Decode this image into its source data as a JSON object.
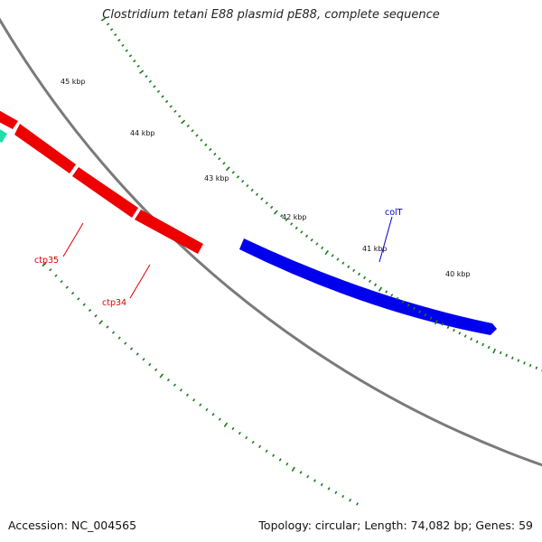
{
  "title": "Clostridium tetani E88 plasmid pE88, complete sequence",
  "footer": {
    "accession": "Accession: NC_004565",
    "summary": "Topology: circular; Length: 74,082 bp; Genes: 59"
  },
  "ticks": [
    {
      "label": "45 kbp"
    },
    {
      "label": "44 kbp"
    },
    {
      "label": "43 kbp"
    },
    {
      "label": "42 kbp"
    },
    {
      "label": "41 kbp"
    },
    {
      "label": "40 kbp"
    }
  ],
  "genes": [
    {
      "name": "ctp35",
      "color": "#dd0000"
    },
    {
      "name": "ctp34",
      "color": "#dd0000"
    },
    {
      "name": "colT",
      "color": "#0000cc"
    }
  ],
  "colors": {
    "backbone": "#7a7a7a",
    "tick": "#1a7a1a",
    "forward_gene": "#0000ee",
    "reverse_gene": "#ee0000",
    "other_gene": "#22ddaa"
  }
}
